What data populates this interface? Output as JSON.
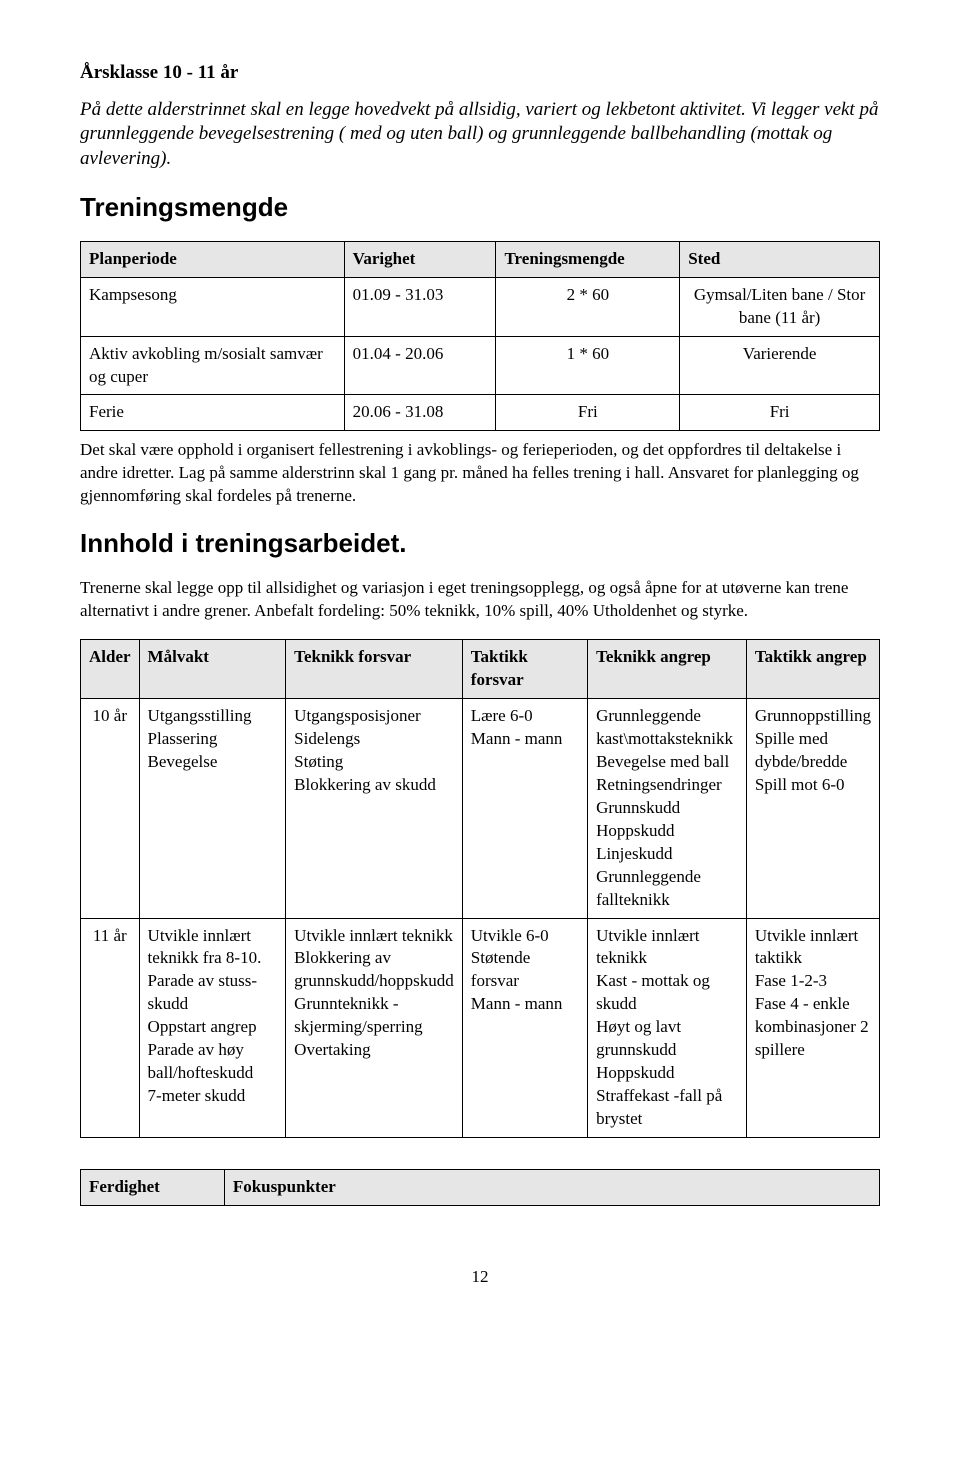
{
  "heading": "Årsklasse 10 - 11 år",
  "intro": "På dette alderstrinnet skal en legge hovedvekt på allsidig, variert og lekbetont aktivitet. Vi legger vekt på grunnleggende bevegelsestrening ( med og uten ball) og grunnleggende ballbehandling (mottak og avlevering).",
  "section1_title": "Treningsmengde",
  "table1": {
    "headers": [
      "Planperiode",
      "Varighet",
      "Treningsmengde",
      "Sted"
    ],
    "rows": [
      [
        "Kampsesong",
        "01.09 - 31.03",
        "2 * 60",
        "Gymsal/Liten bane / Stor bane (11 år)"
      ],
      [
        "Aktiv avkobling m/sosialt samvær og cuper",
        "01.04 - 20.06",
        "1 * 60",
        "Varierende"
      ],
      [
        "Ferie",
        "20.06 - 31.08",
        "Fri",
        "Fri"
      ]
    ]
  },
  "note1": "Det skal være opphold i organisert fellestrening i avkoblings- og ferieperioden, og det oppfordres til deltakelse i andre idretter. Lag på samme alderstrinn skal 1 gang pr. måned ha felles trening i hall. Ansvaret for planlegging og gjennomføring skal fordeles på trenerne.",
  "section2_title": "Innhold i treningsarbeidet.",
  "note2": "Trenerne skal legge opp til allsidighet og variasjon i eget treningsopplegg, og også åpne for at utøverne kan trene alternativt i andre grener. Anbefalt fordeling: 50% teknikk, 10% spill, 40% Utholdenhet og styrke.",
  "table2": {
    "headers": [
      "Alder",
      "Målvakt",
      "Teknikk forsvar",
      "Taktikk forsvar",
      "Teknikk angrep",
      "Taktikk angrep"
    ],
    "rows": [
      [
        "10 år",
        "Utgangsstilling\nPlassering\nBevegelse",
        "Utgangsposisjoner\nSidelengs\nStøting\nBlokkering av skudd",
        "Lære 6-0\nMann - mann",
        "Grunnleggende kast\\mottaksteknikk\nBevegelse med ball\nRetningsendringer\nGrunnskudd\nHoppskudd\nLinjeskudd\nGrunnleggende fallteknikk",
        "Grunnoppstilling\nSpille med dybde/bredde\nSpill mot 6-0"
      ],
      [
        "11 år",
        "Utvikle innlært teknikk fra 8-10.\nParade av stuss-skudd\nOppstart angrep\nParade av høy ball/hofteskudd\n7-meter skudd",
        "Utvikle innlært teknikk\nBlokkering av grunnskudd/hoppskudd\nGrunnteknikk -skjerming/sperring\nOvertaking",
        "Utvikle 6-0\nStøtende forsvar\nMann - mann",
        "Utvikle innlært teknikk\nKast - mottak og skudd\nHøyt og lavt grunnskudd\nHoppskudd\nStraffekast -fall på brystet",
        "Utvikle innlært taktikk\nFase 1-2-3\nFase 4 - enkle kombinasjoner 2 spillere"
      ]
    ]
  },
  "table3": {
    "headers": [
      "Ferdighet",
      "Fokuspunkter"
    ]
  },
  "page_number": "12"
}
